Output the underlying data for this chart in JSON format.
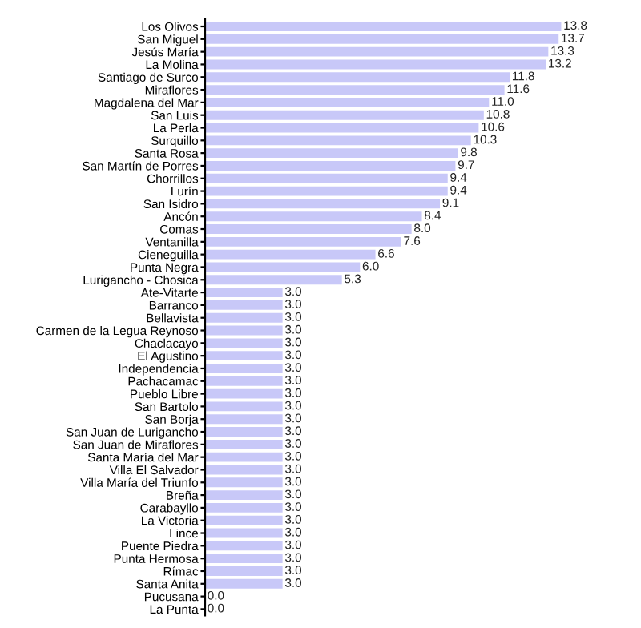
{
  "chart_data": {
    "type": "bar",
    "orientation": "horizontal",
    "tick_labels": "y",
    "color": "#c8c8f8",
    "categories": [
      "Los Olivos",
      "San Miguel",
      "Jesús María",
      "La Molina",
      "Santiago de Surco",
      "Miraflores",
      "Magdalena del Mar",
      "San Luis",
      "La Perla",
      "Surquillo",
      "Santa Rosa",
      "San Martín de Porres",
      "Chorrillos",
      "Lurín",
      "San Isidro",
      "Ancón",
      "Comas",
      "Ventanilla",
      "Cieneguilla",
      "Punta Negra",
      "Lurigancho - Chosica",
      "Ate-Vitarte",
      "Barranco",
      "Bellavista",
      "Carmen de la Legua Reynoso",
      "Chaclacayo",
      "El Agustino",
      "Independencia",
      "Pachacamac",
      "Pueblo Libre",
      "San Bartolo",
      "San Borja",
      "San Juan de Lurigancho",
      "San Juan de Miraflores",
      "Santa María del Mar",
      "Villa El Salvador",
      "Villa María del Triunfo",
      "Breña",
      "Carabayllo",
      "La Victoria",
      "Lince",
      "Puente Piedra",
      "Punta Hermosa",
      "Rímac",
      "Santa Anita",
      "Pucusana",
      "La Punta"
    ],
    "values": [
      13.8,
      13.7,
      13.3,
      13.2,
      11.8,
      11.6,
      11.0,
      10.8,
      10.6,
      10.3,
      9.8,
      9.7,
      9.4,
      9.4,
      9.1,
      8.4,
      8.0,
      7.6,
      6.6,
      6.0,
      5.3,
      3.0,
      3.0,
      3.0,
      3.0,
      3.0,
      3.0,
      3.0,
      3.0,
      3.0,
      3.0,
      3.0,
      3.0,
      3.0,
      3.0,
      3.0,
      3.0,
      3.0,
      3.0,
      3.0,
      3.0,
      3.0,
      3.0,
      3.0,
      3.0,
      0.0,
      0.0
    ],
    "value_labels": [
      "13.8",
      "13.7",
      "13.3",
      "13.2",
      "11.8",
      "11.6",
      "11.0",
      "10.8",
      "10.6",
      "10.3",
      "9.8",
      "9.7",
      "9.4",
      "9.4",
      "9.1",
      "8.4",
      "8.0",
      "7.6",
      "6.6",
      "6.0",
      "5.3",
      "3.0",
      "3.0",
      "3.0",
      "3.0",
      "3.0",
      "3.0",
      "3.0",
      "3.0",
      "3.0",
      "3.0",
      "3.0",
      "3.0",
      "3.0",
      "3.0",
      "3.0",
      "3.0",
      "3.0",
      "3.0",
      "3.0",
      "3.0",
      "3.0",
      "3.0",
      "3.0",
      "3.0",
      "0.0",
      "0.0"
    ]
  }
}
